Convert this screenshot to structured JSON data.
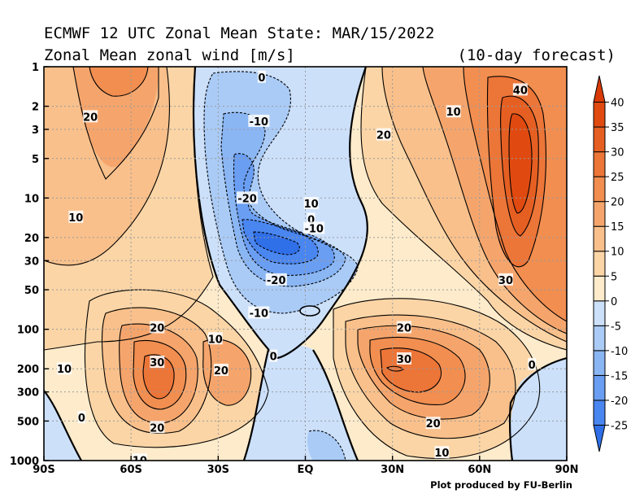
{
  "title_line1": "ECMWF 12 UTC Zonal Mean State: MAR/15/2022",
  "title_line2_left": "Zonal Mean zonal wind [m/s]",
  "title_line2_right": "(10-day forecast)",
  "credit": "Plot produced by FU-Berlin",
  "chart_data": {
    "type": "heatmap",
    "title": "ECMWF 12 UTC Zonal Mean State: MAR/15/2022",
    "subtitle": "Zonal Mean zonal wind [m/s]",
    "xlabel": "",
    "ylabel": "",
    "x_ticks": [
      {
        "label": "90S",
        "value": -90
      },
      {
        "label": "60S",
        "value": -60
      },
      {
        "label": "30S",
        "value": -30
      },
      {
        "label": "EQ",
        "value": 0
      },
      {
        "label": "30N",
        "value": 30
      },
      {
        "label": "60N",
        "value": 60
      },
      {
        "label": "90N",
        "value": 90
      }
    ],
    "y_ticks": [
      {
        "label": "1",
        "value": 1
      },
      {
        "label": "2",
        "value": 2
      },
      {
        "label": "3",
        "value": 3
      },
      {
        "label": "5",
        "value": 5
      },
      {
        "label": "10",
        "value": 10
      },
      {
        "label": "20",
        "value": 20
      },
      {
        "label": "30",
        "value": 30
      },
      {
        "label": "50",
        "value": 50
      },
      {
        "label": "100",
        "value": 100
      },
      {
        "label": "200",
        "value": 200
      },
      {
        "label": "300",
        "value": 300
      },
      {
        "label": "500",
        "value": 500
      },
      {
        "label": "1000",
        "value": 1000
      }
    ],
    "xlim": [
      -90,
      90
    ],
    "ylim": [
      1000,
      1
    ],
    "y_scale": "log",
    "grid": true,
    "colorbar": {
      "levels": [
        -25,
        -20,
        -15,
        -10,
        -5,
        0,
        5,
        10,
        15,
        20,
        25,
        30,
        35,
        40
      ],
      "labels": [
        "40",
        "35",
        "30",
        "25",
        "20",
        "15",
        "10",
        "5",
        "0",
        "-5",
        "-10",
        "-15",
        "-20",
        "-25"
      ],
      "colors": [
        "#2f6fe8",
        "#4a86f0",
        "#6a9ef2",
        "#8ab6f4",
        "#aacbf6",
        "#cce0fa",
        "#fdebcb",
        "#fbd5a6",
        "#f9c08b",
        "#f5a56c",
        "#f18e50",
        "#ec7538",
        "#e65f22",
        "#e04a10",
        "#d93a06"
      ]
    },
    "contour_labels": [
      {
        "text": "20",
        "lat": -74,
        "p": 2.4
      },
      {
        "text": "10",
        "lat": -79,
        "p": 14
      },
      {
        "text": "0",
        "lat": -15,
        "p": 1.2
      },
      {
        "text": "-10",
        "lat": -16,
        "p": 2.6
      },
      {
        "text": "-20",
        "lat": -20,
        "p": 10
      },
      {
        "text": "10",
        "lat": 2,
        "p": 11
      },
      {
        "text": "0",
        "lat": 2,
        "p": 14.5
      },
      {
        "text": "-10",
        "lat": 3,
        "p": 17
      },
      {
        "text": "-20",
        "lat": -10,
        "p": 42
      },
      {
        "text": "-10",
        "lat": -16,
        "p": 75
      },
      {
        "text": "10",
        "lat": 51,
        "p": 2.2
      },
      {
        "text": "20",
        "lat": 27,
        "p": 3.3
      },
      {
        "text": "40",
        "lat": 74,
        "p": 1.5
      },
      {
        "text": "30",
        "lat": 69,
        "p": 42
      },
      {
        "text": "20",
        "lat": 34,
        "p": 97
      },
      {
        "text": "30",
        "lat": 34,
        "p": 168
      },
      {
        "text": "20",
        "lat": 44,
        "p": 520
      },
      {
        "text": "10",
        "lat": 47,
        "p": 870
      },
      {
        "text": "0",
        "lat": 78,
        "p": 185
      },
      {
        "text": "20",
        "lat": -51,
        "p": 97
      },
      {
        "text": "10",
        "lat": -31,
        "p": 118
      },
      {
        "text": "30",
        "lat": -51,
        "p": 178
      },
      {
        "text": "20",
        "lat": -29,
        "p": 205
      },
      {
        "text": "10",
        "lat": -83,
        "p": 200
      },
      {
        "text": "0",
        "lat": -77,
        "p": 470
      },
      {
        "text": "20",
        "lat": -51,
        "p": 560
      },
      {
        "text": "10",
        "lat": -57,
        "p": 990
      },
      {
        "text": "0",
        "lat": -11,
        "p": 160
      }
    ]
  }
}
